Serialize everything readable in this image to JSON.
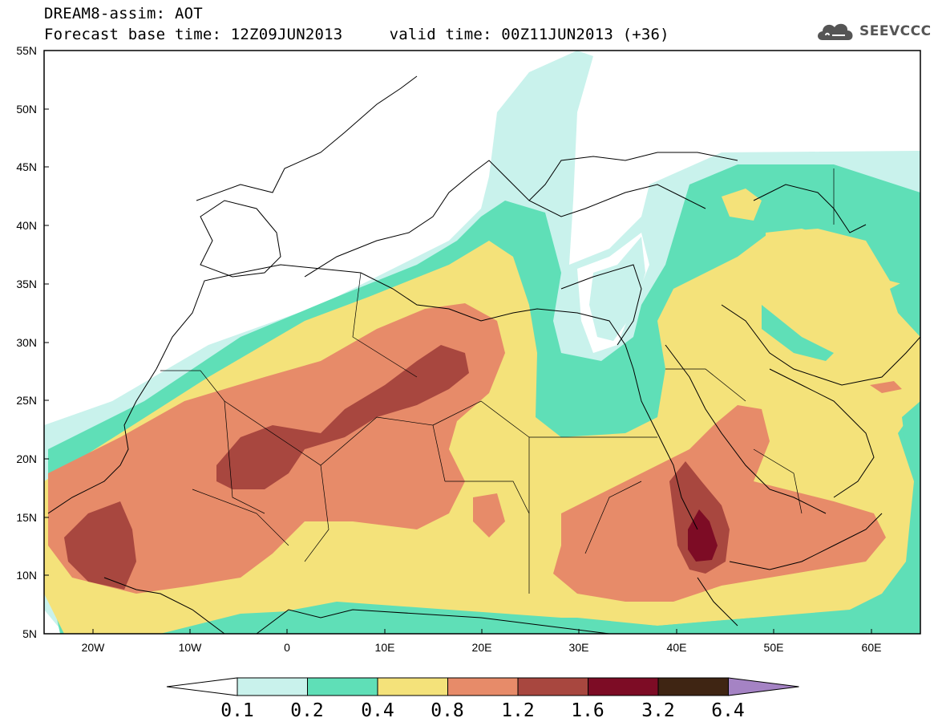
{
  "title": {
    "line1": "DREAM8-assim: AOT",
    "line2": "Forecast base time: 12Z09JUN2013     valid time: 00Z11JUN2013 (+36)"
  },
  "logo": {
    "text": "SEEVCCC",
    "icon": "cloud-icon"
  },
  "map": {
    "lon_labels": [
      "20W",
      "10W",
      "0",
      "10E",
      "20E",
      "30E",
      "40E",
      "50E",
      "60E"
    ],
    "lat_labels": [
      "55N",
      "50N",
      "45N",
      "40N",
      "35N",
      "30N",
      "25N",
      "20N",
      "15N",
      "10N",
      "5N"
    ]
  },
  "colorbar": {
    "levels": [
      "0.1",
      "0.2",
      "0.4",
      "0.8",
      "1.2",
      "1.6",
      "3.2",
      "6.4"
    ],
    "colors": [
      "#ffffff",
      "#c9f2ec",
      "#5fdfb7",
      "#f4e27a",
      "#e78b69",
      "#a8473f",
      "#7d0c25",
      "#3f2513",
      "#a583c4"
    ]
  },
  "chart_data": {
    "type": "heatmap",
    "title": "DREAM8-assim: AOT",
    "subtitle": "Forecast base time: 12Z09JUN2013     valid time: 00Z11JUN2013 (+36)",
    "x_range": [
      -25,
      65
    ],
    "y_range": [
      5,
      55
    ],
    "contour_levels": [
      0.1,
      0.2,
      0.4,
      0.8,
      1.2,
      1.6,
      3.2,
      6.4
    ]
  }
}
